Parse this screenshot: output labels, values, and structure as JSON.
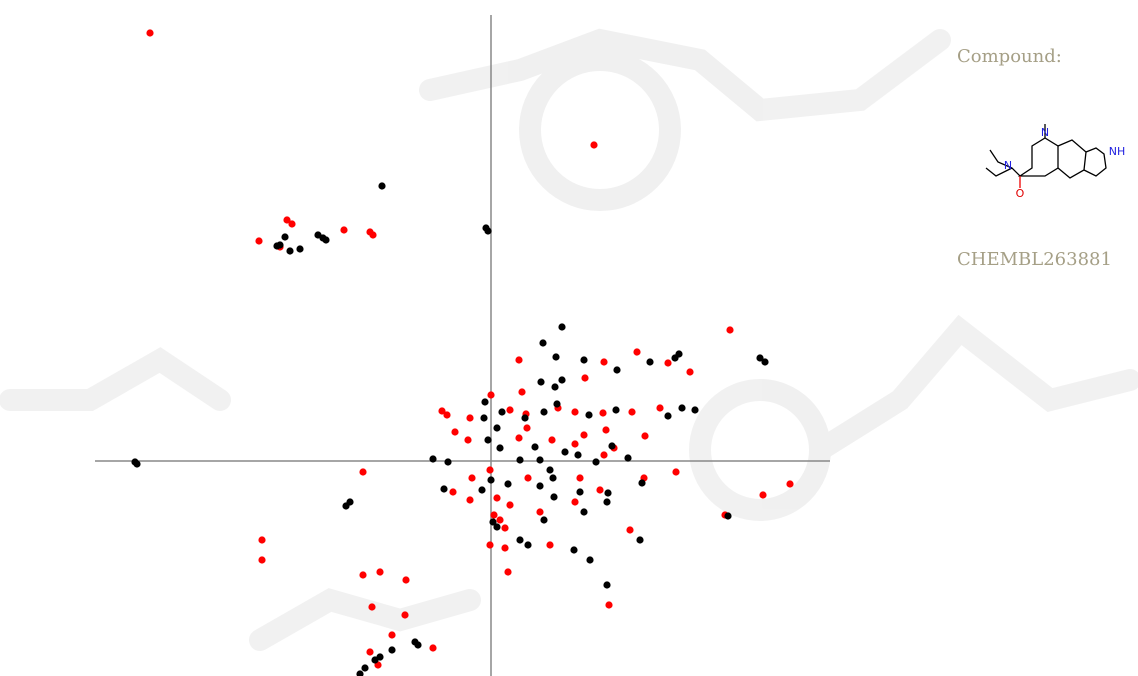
{
  "chart_data": {
    "type": "scatter",
    "xlim": [
      -396,
      339
    ],
    "ylim": [
      -215,
      446
    ],
    "series": [
      {
        "color": "#ff0000",
        "x": [
          -341,
          103,
          -204,
          -199,
          -232,
          -147,
          -121,
          -118,
          -211,
          239,
          28,
          113,
          146,
          177,
          199,
          94,
          31,
          0,
          -49,
          -44,
          -21,
          19,
          35,
          67,
          84,
          112,
          141,
          169,
          154,
          -36,
          -23,
          28,
          61,
          84,
          113,
          123,
          93,
          115,
          36,
          -1,
          -19,
          37,
          89,
          153,
          185,
          -128,
          -38,
          -21,
          6,
          19,
          84,
          109,
          49,
          3,
          9,
          14,
          -1,
          14,
          59,
          139,
          234,
          272,
          299,
          -229,
          -229,
          -128,
          -111,
          -85,
          -119,
          -86,
          -99,
          -58,
          -121,
          -113,
          118,
          17
        ],
        "values": [
          428,
          316,
          241,
          237,
          220,
          231,
          229,
          226,
          214,
          131,
          101,
          99,
          109,
          98,
          89,
          83,
          69,
          66,
          50,
          46,
          43,
          51,
          47,
          53,
          49,
          48,
          49,
          53,
          25,
          29,
          21,
          23,
          21,
          17,
          6,
          13,
          26,
          31,
          33,
          -9,
          -17,
          -17,
          -17,
          -17,
          -11,
          -11,
          -31,
          -39,
          -37,
          -44,
          -41,
          -29,
          -51,
          -54,
          -59,
          -67,
          -84,
          -87,
          -84,
          -69,
          -54,
          -34,
          -23,
          -79,
          -99,
          -114,
          -111,
          -119,
          -146,
          -154,
          -174,
          -187,
          -191,
          -204,
          -144,
          -111
        ]
      },
      {
        "color": "#000000",
        "x": [
          -109,
          -5,
          -3,
          -173,
          -168,
          -165,
          -214,
          -211,
          -201,
          -191,
          -206,
          71,
          52,
          65,
          93,
          126,
          159,
          184,
          188,
          269,
          274,
          50,
          64,
          71,
          -6,
          11,
          -7,
          6,
          34,
          53,
          66,
          44,
          -3,
          9,
          74,
          49,
          87,
          105,
          137,
          121,
          191,
          204,
          177,
          98,
          125,
          -58,
          -43,
          29,
          59,
          62,
          0,
          17,
          49,
          63,
          89,
          116,
          117,
          151,
          -47,
          -9,
          -141,
          -145,
          -356,
          -354,
          2,
          6,
          53,
          93,
          29,
          37,
          83,
          99,
          116,
          149,
          237,
          -76,
          -73,
          -99,
          -111,
          -116,
          -126,
          -131
        ],
        "values": [
          275,
          233,
          230,
          226,
          223,
          221,
          215,
          216,
          210,
          212,
          224,
          134,
          118,
          104,
          101,
          91,
          99,
          103,
          107,
          103,
          99,
          79,
          74,
          81,
          59,
          49,
          43,
          33,
          43,
          49,
          57,
          14,
          21,
          13,
          9,
          1,
          6,
          -1,
          3,
          15,
          53,
          51,
          45,
          46,
          51,
          2,
          -1,
          1,
          -9,
          -17,
          -19,
          -23,
          -25,
          -36,
          -31,
          -41,
          -32,
          -22,
          -28,
          -29,
          -41,
          -45,
          -1,
          -3,
          -61,
          -66,
          -59,
          -51,
          -79,
          -84,
          -89,
          -99,
          -124,
          -79,
          -55,
          -181,
          -184,
          -189,
          -196,
          -199,
          -207,
          -213
        ]
      }
    ]
  },
  "compound": {
    "label": "Compound:",
    "id": "CHEMBL263881",
    "structure_labels": [
      "N",
      "N",
      "NH",
      "O"
    ]
  }
}
